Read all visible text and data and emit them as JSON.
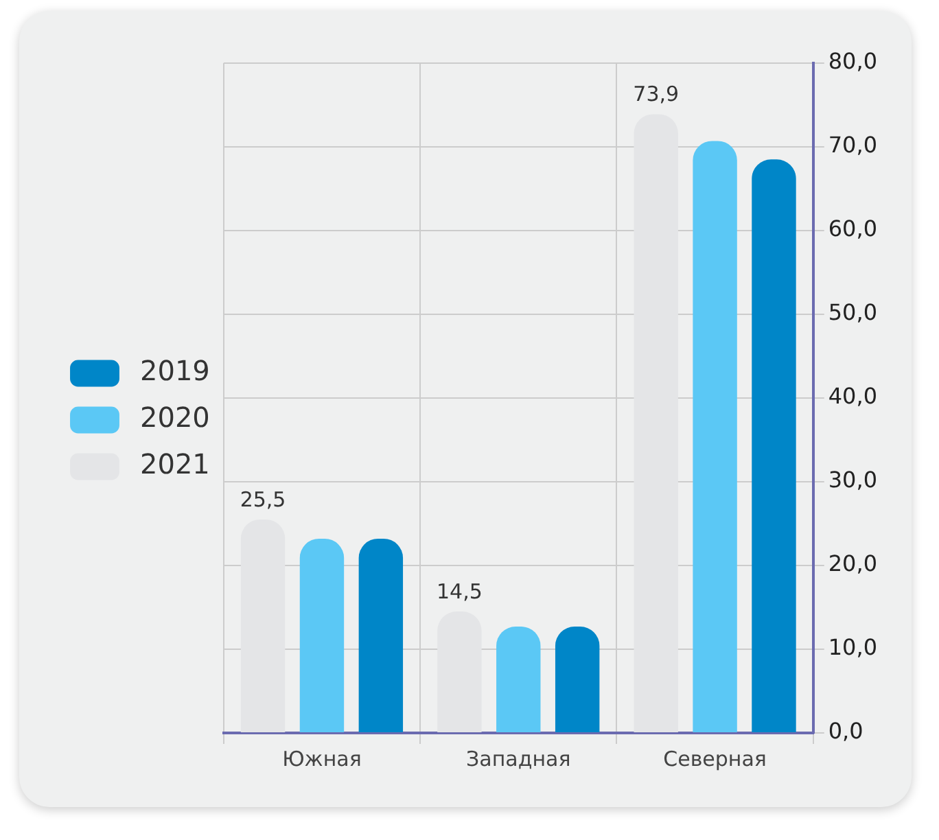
{
  "chart_data": {
    "type": "bar",
    "categories": [
      "Южная",
      "Западная",
      "Северная"
    ],
    "series": [
      {
        "name": "2021",
        "color": "#e4e5e7",
        "values": [
          25.5,
          14.5,
          73.9
        ],
        "value_labels": [
          "25,5",
          "14,5",
          "73,9"
        ]
      },
      {
        "name": "2020",
        "color": "#5bc8f5",
        "values": [
          23.2,
          12.7,
          70.7
        ]
      },
      {
        "name": "2019",
        "color": "#0086c8",
        "values": [
          23.2,
          12.7,
          68.5
        ]
      }
    ],
    "ylim": [
      0,
      80
    ],
    "yticks": [
      {
        "value": 0,
        "label": "0,0"
      },
      {
        "value": 10,
        "label": "10,0"
      },
      {
        "value": 20,
        "label": "20,0"
      },
      {
        "value": 30,
        "label": "30,0"
      },
      {
        "value": 40,
        "label": "40,0"
      },
      {
        "value": 50,
        "label": "50,0"
      },
      {
        "value": 60,
        "label": "60,0"
      },
      {
        "value": 70,
        "label": "70,0"
      },
      {
        "value": 80,
        "label": "80,0"
      }
    ],
    "grid": true,
    "legend": "left"
  }
}
